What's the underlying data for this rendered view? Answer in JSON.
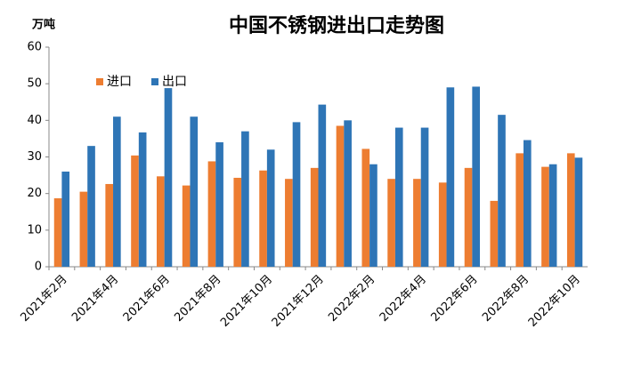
{
  "chart_data": {
    "type": "bar",
    "title": "中国不锈钢进出口走势图",
    "y_label": "万吨",
    "categories": [
      "2021年2月",
      null,
      "2021年4月",
      null,
      "2021年6月",
      null,
      "2021年8月",
      null,
      "2021年10月",
      null,
      "2021年12月",
      null,
      "2022年2月",
      null,
      "2022年4月",
      null,
      "2022年6月",
      null,
      "2022年8月",
      null,
      "2022年10月"
    ],
    "series": [
      {
        "name": "进口",
        "color": "#ed7d31",
        "values": [
          18.7,
          20.5,
          22.6,
          30.4,
          24.7,
          22.2,
          28.8,
          24.3,
          26.3,
          24,
          27,
          38.5,
          32.2,
          24,
          24,
          23,
          27,
          18,
          31,
          27.3,
          31
        ]
      },
      {
        "name": "出口",
        "color": "#2e75b6",
        "values": [
          26,
          33,
          41,
          36.7,
          48.8,
          41,
          34,
          37,
          32,
          39.5,
          44.3,
          40,
          28,
          38,
          38,
          49,
          49.2,
          41.5,
          34.6,
          28,
          29.8
        ]
      }
    ],
    "ylim": [
      0,
      60
    ],
    "yticks": [
      0,
      10,
      20,
      30,
      40,
      50,
      60
    ],
    "grid": false,
    "legend": "top-left"
  }
}
